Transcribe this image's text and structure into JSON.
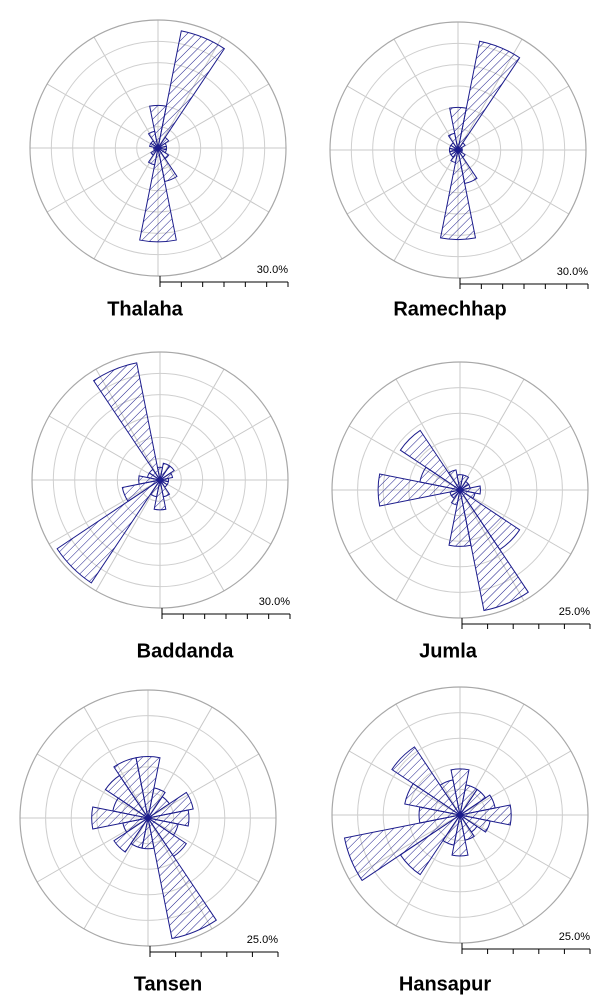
{
  "chart_data": [
    {
      "type": "windrose",
      "title": "Thalaha",
      "values": [
        10,
        28,
        3,
        2,
        2,
        2,
        3,
        8,
        22,
        4,
        2,
        1,
        1,
        2,
        2,
        4
      ],
      "rlim": [
        0,
        30
      ],
      "rticks": [
        5,
        10,
        15,
        20,
        25,
        30
      ],
      "scale": {
        "value": 30,
        "label": "30.0%"
      },
      "color": "#1c1c8c"
    },
    {
      "type": "windrose",
      "title": "Ramechhap",
      "values": [
        10,
        26,
        2,
        1,
        1,
        1,
        2,
        8,
        21,
        3,
        2,
        2,
        2,
        2,
        2,
        4
      ],
      "rlim": [
        0,
        30
      ],
      "rticks": [
        5,
        10,
        15,
        20,
        25,
        30
      ],
      "scale": {
        "value": 30,
        "label": "30.0%"
      },
      "color": "#1c1c8c"
    },
    {
      "type": "windrose",
      "title": "Baddanda",
      "values": [
        3,
        4,
        4,
        3,
        2,
        2,
        2,
        4,
        7,
        4,
        29,
        9,
        5,
        3,
        3,
        28
      ],
      "rlim": [
        0,
        30
      ],
      "rticks": [
        5,
        10,
        15,
        20,
        25,
        30
      ],
      "scale": {
        "value": 30,
        "label": "30.0%"
      },
      "color": "#1c1c8c"
    },
    {
      "type": "windrose",
      "title": "Jumla",
      "values": [
        3,
        3,
        2,
        2,
        4,
        3,
        14,
        24,
        11,
        3,
        2,
        2,
        16,
        8,
        14,
        4
      ],
      "rlim": [
        0,
        25
      ],
      "rticks": [
        5,
        10,
        15,
        20,
        25
      ],
      "scale": {
        "value": 25,
        "label": "25.0%"
      },
      "color": "#1c1c8c"
    },
    {
      "type": "windrose",
      "title": "Tansen",
      "values": [
        12,
        6,
        5,
        9,
        8,
        6,
        9,
        24,
        6,
        6,
        8,
        5,
        11,
        7,
        10,
        12
      ],
      "rlim": [
        0,
        25
      ],
      "rticks": [
        5,
        10,
        15,
        20,
        25
      ],
      "scale": {
        "value": 25,
        "label": "25.0%"
      },
      "color": "#1c1c8c"
    },
    {
      "type": "windrose",
      "title": "Hansapur",
      "values": [
        9,
        6,
        6,
        7,
        10,
        6,
        4,
        5,
        8,
        6,
        14,
        23,
        8,
        11,
        16,
        7
      ],
      "rlim": [
        0,
        25
      ],
      "rticks": [
        5,
        10,
        15,
        20,
        25
      ],
      "scale": {
        "value": 25,
        "label": "25.0%"
      },
      "color": "#1c1c8c"
    }
  ]
}
